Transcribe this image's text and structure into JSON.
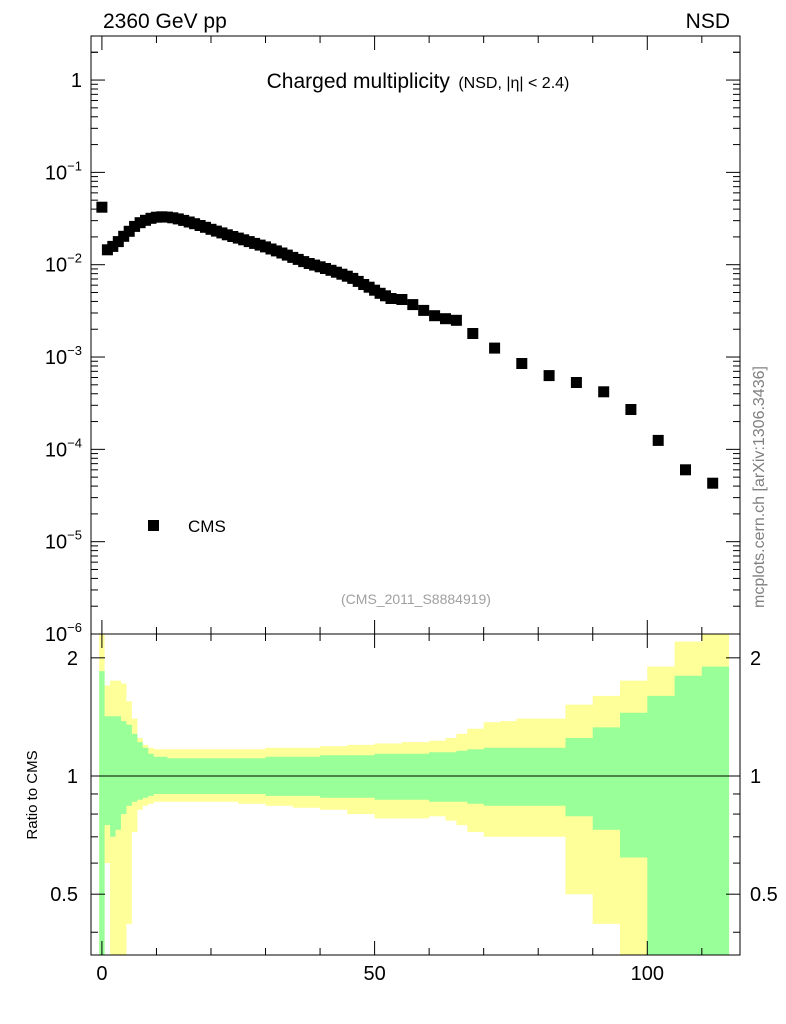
{
  "header": {
    "energy_label": "2360 GeV pp",
    "process_label": "NSD",
    "side_label": "mcplots.cern.ch [arXiv:1306.3436]"
  },
  "colors": {
    "band_inner": "#99ff99",
    "band_outer": "#ffff99",
    "marker": "#000000",
    "reference_line": "#000000",
    "analysis_text": "#a0a0a0",
    "side_text": "#808080"
  },
  "chart_data": [
    {
      "type": "scatter",
      "panel": "main",
      "title": "Charged multiplicity",
      "subtitle": "(NSD, |η| < 2.4)",
      "analysis_id": "(CMS_2011_S8884919)",
      "yscale": "log",
      "ylim": [
        1e-06,
        3
      ],
      "xlim": [
        -2,
        117
      ],
      "y_tick_labels": [
        {
          "base": "10",
          "exp": "−6",
          "value": 1e-06
        },
        {
          "base": "10",
          "exp": "−5",
          "value": 1e-05
        },
        {
          "base": "10",
          "exp": "−4",
          "value": 0.0001
        },
        {
          "base": "10",
          "exp": "−3",
          "value": 0.001
        },
        {
          "base": "10",
          "exp": "−2",
          "value": 0.01
        },
        {
          "base": "10",
          "exp": "−1",
          "value": 0.1
        },
        {
          "base": "1",
          "exp": "",
          "value": 1
        }
      ],
      "legend": [
        {
          "name": "CMS",
          "marker": "square",
          "position": "bottom-left"
        }
      ],
      "series": [
        {
          "name": "CMS",
          "x": [
            0,
            1,
            2,
            3,
            4,
            5,
            6,
            7,
            8,
            9,
            10,
            11,
            12,
            13,
            14,
            15,
            16,
            17,
            18,
            19,
            20,
            21,
            22,
            23,
            24,
            25,
            26,
            27,
            28,
            29,
            30,
            31,
            32,
            33,
            34,
            35,
            36,
            37,
            38,
            39,
            40,
            41,
            42,
            43,
            44,
            45,
            46,
            47,
            48,
            49,
            50,
            51,
            52,
            53,
            55,
            57,
            59,
            61,
            63,
            65,
            68,
            72,
            77,
            82,
            87,
            92,
            97,
            102,
            107,
            112
          ],
          "y": [
            0.042,
            0.0145,
            0.0158,
            0.0178,
            0.0203,
            0.023,
            0.026,
            0.0285,
            0.0303,
            0.0318,
            0.0327,
            0.033,
            0.0328,
            0.0322,
            0.0313,
            0.0302,
            0.029,
            0.0278,
            0.0266,
            0.0254,
            0.0242,
            0.0231,
            0.0221,
            0.0211,
            0.0202,
            0.0194,
            0.0186,
            0.0178,
            0.017,
            0.0163,
            0.0156,
            0.0148,
            0.0141,
            0.0134,
            0.0127,
            0.012,
            0.0114,
            0.0108,
            0.0103,
            0.0099,
            0.0095,
            0.0091,
            0.0087,
            0.0083,
            0.0079,
            0.0075,
            0.0071,
            0.0066,
            0.0061,
            0.0057,
            0.0053,
            0.0049,
            0.0046,
            0.0043,
            0.0042,
            0.0037,
            0.0032,
            0.0028,
            0.0026,
            0.0025,
            0.0018,
            0.00125,
            0.00085,
            0.00063,
            0.00053,
            0.00042,
            0.00027,
            0.000125,
            6e-05,
            4.3e-05
          ]
        }
      ]
    },
    {
      "type": "area",
      "panel": "ratio",
      "ylabel": "Ratio to CMS",
      "xlabel": "",
      "xlim": [
        -2,
        117
      ],
      "ylim": [
        0.35,
        2.3
      ],
      "x_ticks": [
        0,
        50,
        100
      ],
      "y_ticks": [
        0.5,
        1,
        2
      ],
      "reference": 1,
      "bands": {
        "x_edges": [
          -0.5,
          0.5,
          1.5,
          2.5,
          3.5,
          4.5,
          5.5,
          6.5,
          7.5,
          8.5,
          9.5,
          12,
          15,
          20,
          25,
          30,
          35,
          40,
          45,
          50,
          55,
          60,
          63,
          65,
          67,
          70,
          73,
          76,
          80,
          85,
          90,
          95,
          100,
          105,
          110,
          115
        ],
        "inner_hi": [
          1.85,
          1.42,
          1.42,
          1.42,
          1.38,
          1.35,
          1.28,
          1.22,
          1.18,
          1.14,
          1.12,
          1.11,
          1.11,
          1.11,
          1.11,
          1.12,
          1.12,
          1.13,
          1.13,
          1.14,
          1.14,
          1.15,
          1.15,
          1.16,
          1.17,
          1.18,
          1.18,
          1.18,
          1.18,
          1.25,
          1.33,
          1.45,
          1.6,
          1.8,
          1.9
        ],
        "inner_lo": [
          0.15,
          0.75,
          0.7,
          0.73,
          0.8,
          0.84,
          0.86,
          0.87,
          0.88,
          0.89,
          0.9,
          0.9,
          0.9,
          0.9,
          0.9,
          0.89,
          0.89,
          0.88,
          0.88,
          0.87,
          0.87,
          0.86,
          0.86,
          0.86,
          0.85,
          0.84,
          0.84,
          0.84,
          0.84,
          0.79,
          0.73,
          0.62,
          0.2,
          0.2,
          0.2
        ],
        "outer_hi": [
          2.4,
          1.7,
          1.75,
          1.75,
          1.72,
          1.55,
          1.4,
          1.25,
          1.2,
          1.18,
          1.17,
          1.17,
          1.17,
          1.17,
          1.17,
          1.18,
          1.18,
          1.19,
          1.2,
          1.21,
          1.22,
          1.23,
          1.25,
          1.28,
          1.32,
          1.37,
          1.38,
          1.4,
          1.4,
          1.52,
          1.6,
          1.75,
          1.9,
          2.2,
          2.5
        ],
        "outer_lo": [
          0.2,
          0.6,
          0.3,
          0.3,
          0.3,
          0.42,
          0.72,
          0.82,
          0.84,
          0.85,
          0.86,
          0.86,
          0.86,
          0.86,
          0.85,
          0.84,
          0.83,
          0.82,
          0.8,
          0.78,
          0.78,
          0.79,
          0.77,
          0.75,
          0.72,
          0.7,
          0.7,
          0.7,
          0.7,
          0.5,
          0.42,
          0.32,
          0.1,
          0.1,
          0.1
        ]
      }
    }
  ]
}
